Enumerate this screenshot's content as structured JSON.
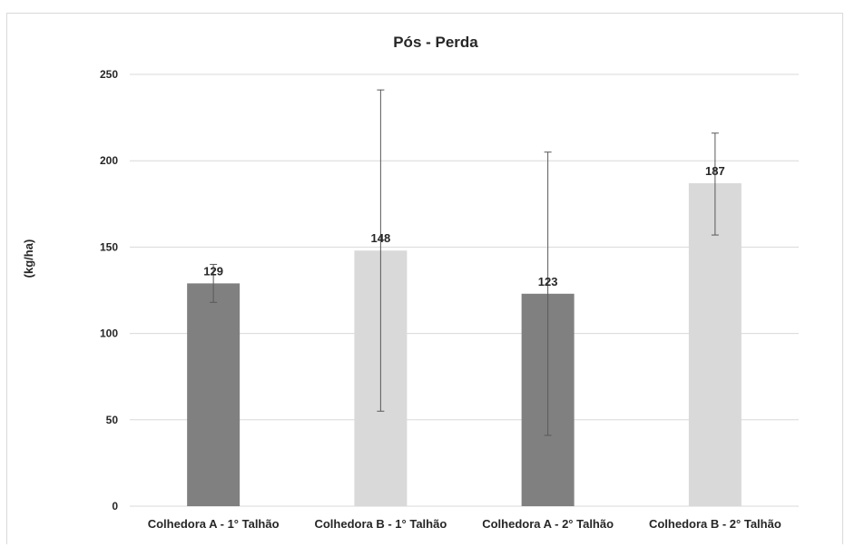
{
  "chart_data": {
    "type": "bar",
    "title": "Pós - Perda",
    "xlabel": "",
    "ylabel": "(kg/ha)",
    "ylim": [
      0,
      250
    ],
    "yticks": [
      0,
      50,
      100,
      150,
      200,
      250
    ],
    "grid": true,
    "categories": [
      "Colhedora A - 1° Talhão",
      "Colhedora B - 1° Talhão",
      "Colhedora A - 2° Talhão",
      "Colhedora B - 2° Talhão"
    ],
    "values": [
      129,
      148,
      123,
      187
    ],
    "data_labels": [
      "129",
      "148",
      "123",
      "187"
    ],
    "error_low": [
      118,
      55,
      41,
      157
    ],
    "error_high": [
      140,
      241,
      205,
      216
    ],
    "bar_colors": [
      "#808080",
      "#d9d9d9",
      "#808080",
      "#d9d9d9"
    ]
  }
}
